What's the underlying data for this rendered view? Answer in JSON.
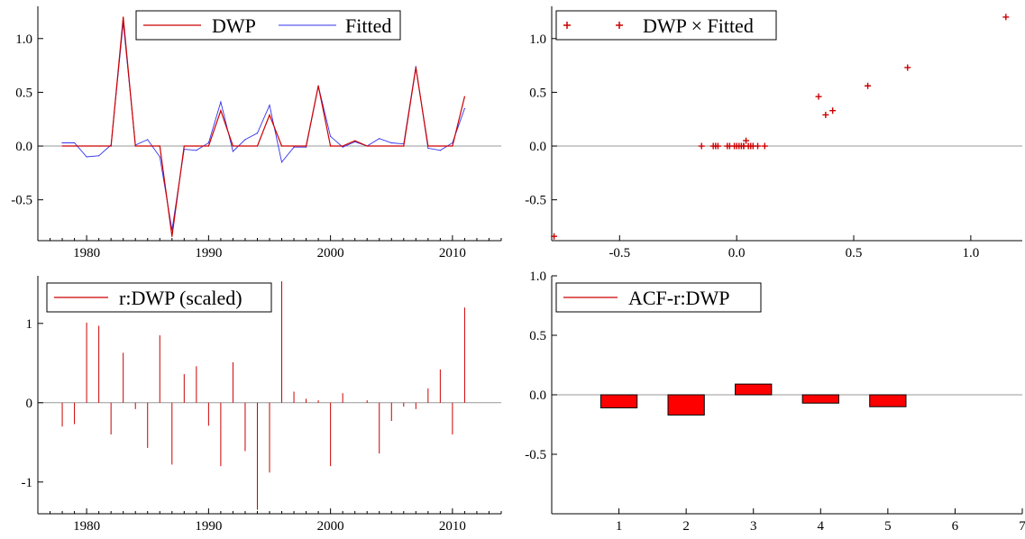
{
  "chart_data": [
    {
      "type": "line",
      "xlim": [
        1976,
        2014
      ],
      "ylim": [
        -0.88,
        1.3
      ],
      "xticks": [
        1980,
        1990,
        2000,
        2010
      ],
      "yticks": [
        -0.5,
        0.0,
        0.5,
        1.0
      ],
      "ytick_labels": [
        "-0.5",
        "0.0",
        "0.5",
        "1.0"
      ],
      "zero_line": true,
      "legend_position": "top-center",
      "x": [
        1978,
        1979,
        1980,
        1981,
        1982,
        1983,
        1984,
        1985,
        1986,
        1987,
        1988,
        1989,
        1990,
        1991,
        1992,
        1993,
        1994,
        1995,
        1996,
        1997,
        1998,
        1999,
        2000,
        2001,
        2002,
        2003,
        2004,
        2005,
        2006,
        2007,
        2008,
        2009,
        2010,
        2011
      ],
      "series": [
        {
          "name": "DWP",
          "color": "#cc0000",
          "values": [
            0,
            0,
            0,
            0,
            0,
            1.2,
            0,
            0,
            0,
            -0.84,
            0,
            0,
            0,
            0.33,
            0,
            0,
            0,
            0.29,
            0,
            0,
            0,
            0.56,
            0,
            0,
            0.05,
            0,
            0,
            0,
            0,
            0.73,
            0,
            0,
            0,
            0.46
          ]
        },
        {
          "name": "Fitted",
          "color": "#3333ee",
          "values": [
            0.03,
            0.03,
            -0.1,
            -0.09,
            0.01,
            1.15,
            0.01,
            0.06,
            -0.1,
            -0.78,
            -0.03,
            -0.04,
            0.03,
            0.41,
            -0.05,
            0.06,
            0.12,
            0.38,
            -0.15,
            -0.01,
            -0.01,
            0.56,
            0.09,
            -0.01,
            0.04,
            0.0,
            0.07,
            0.03,
            0.02,
            0.74,
            -0.02,
            -0.04,
            0.03,
            0.35
          ]
        }
      ]
    },
    {
      "type": "scatter",
      "xlim": [
        -0.79,
        1.22
      ],
      "ylim": [
        -0.88,
        1.3
      ],
      "xticks": [
        -0.5,
        0.0,
        0.5,
        1.0
      ],
      "xtick_labels": [
        "-0.5",
        "0.0",
        "0.5",
        "1.0"
      ],
      "yticks": [
        -0.5,
        0.0,
        0.5,
        1.0
      ],
      "ytick_labels": [
        "-0.5",
        "0.0",
        "0.5",
        "1.0"
      ],
      "zero_line": true,
      "legend_position": "top-left",
      "series": [
        {
          "name": "DWP × Fitted",
          "color": "#cc0000",
          "x": [
            1.15,
            -0.78,
            0.73,
            0.56,
            0.35,
            0.41,
            0.38,
            -0.15,
            -0.1,
            -0.09,
            -0.08,
            -0.04,
            -0.03,
            -0.01,
            0.0,
            0.01,
            0.02,
            0.03,
            0.03,
            0.04,
            0.05,
            0.06,
            0.07,
            0.09,
            0.12
          ],
          "y": [
            1.2,
            -0.84,
            0.73,
            0.56,
            0.46,
            0.33,
            0.29,
            0,
            0,
            0,
            0,
            0,
            0,
            0,
            0,
            0,
            0,
            0,
            0,
            0.05,
            0,
            0,
            0,
            0,
            0
          ]
        }
      ]
    },
    {
      "type": "bar",
      "xlim": [
        1976,
        2014
      ],
      "ylim": [
        -1.4,
        1.6
      ],
      "xticks": [
        1980,
        1990,
        2000,
        2010
      ],
      "yticks": [
        -1,
        0,
        1
      ],
      "ytick_labels": [
        "-1",
        "0",
        "1"
      ],
      "zero_line": true,
      "legend_position": "top-left",
      "x": [
        1978,
        1979,
        1980,
        1981,
        1982,
        1983,
        1984,
        1985,
        1986,
        1987,
        1988,
        1989,
        1990,
        1991,
        1992,
        1993,
        1994,
        1995,
        1996,
        1997,
        1998,
        1999,
        2000,
        2001,
        2002,
        2003,
        2004,
        2005,
        2006,
        2007,
        2008,
        2009,
        2010,
        2011
      ],
      "series": [
        {
          "name": "r:DWP (scaled)",
          "color": "#cc0000",
          "values": [
            -0.3,
            -0.27,
            1.01,
            0.97,
            -0.4,
            0.63,
            -0.08,
            -0.57,
            0.85,
            -0.78,
            0.36,
            0.46,
            -0.29,
            -0.8,
            0.51,
            -0.61,
            -1.35,
            -0.88,
            1.53,
            0.14,
            0.05,
            0.03,
            -0.8,
            0.12,
            0.0,
            0.03,
            -0.64,
            -0.23,
            -0.05,
            -0.08,
            0.18,
            0.42,
            -0.4,
            1.2
          ]
        }
      ]
    },
    {
      "type": "bar",
      "xlim": [
        0,
        7
      ],
      "ylim": [
        -1.0,
        1.0
      ],
      "xticks": [
        1,
        2,
        3,
        4,
        5,
        6,
        7
      ],
      "yticks": [
        -0.5,
        0.0,
        0.5,
        1.0
      ],
      "ytick_labels": [
        "-0.5",
        "0.0",
        "0.5",
        "1.0"
      ],
      "zero_line": true,
      "legend_position": "top-left",
      "x": [
        1,
        2,
        3,
        4,
        5
      ],
      "series": [
        {
          "name": "ACF-r:DWP",
          "color": "#cc0000",
          "fill": "#ff0000",
          "values": [
            -0.11,
            -0.17,
            0.09,
            -0.07,
            -0.1
          ]
        }
      ]
    }
  ]
}
